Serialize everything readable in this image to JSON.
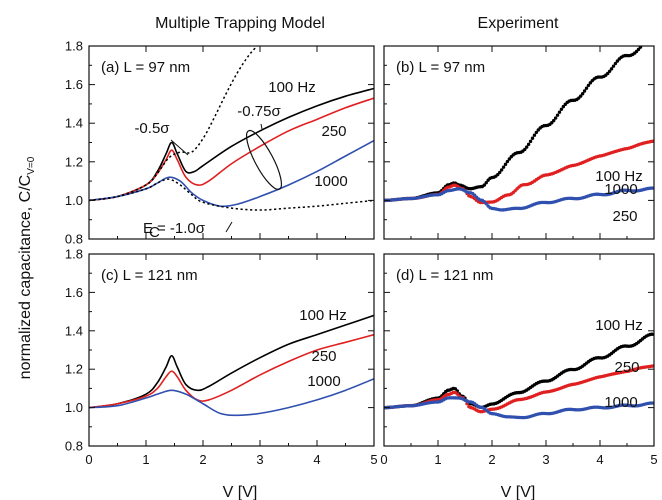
{
  "figure": {
    "column_titles": [
      "Multiple Trapping Model",
      "Experiment"
    ],
    "ylabel_main": "normalized capacitance, C/C",
    "ylabel_sub": "V=0",
    "xlabel": "V [V]"
  },
  "chart_data": [
    {
      "panel": "a",
      "type": "line",
      "label": "(a) L = 97 nm",
      "xlim": [
        0,
        5
      ],
      "ylim": [
        0.8,
        1.8
      ],
      "xticks": [
        0,
        1,
        2,
        3,
        4,
        5
      ],
      "yticks": [
        0.8,
        1.0,
        1.2,
        1.4,
        1.6,
        1.8
      ],
      "series": [
        {
          "name": "100 Hz",
          "color": "#000000",
          "style": "solid",
          "x": [
            0,
            0.5,
            1.0,
            1.2,
            1.35,
            1.45,
            1.55,
            1.7,
            1.85,
            2.0,
            2.5,
            3.0,
            3.5,
            4.0,
            4.5,
            5.0
          ],
          "y": [
            1.0,
            1.02,
            1.08,
            1.15,
            1.24,
            1.3,
            1.24,
            1.15,
            1.15,
            1.18,
            1.28,
            1.36,
            1.43,
            1.49,
            1.54,
            1.58
          ]
        },
        {
          "name": "250",
          "color": "#e02020",
          "style": "solid",
          "x": [
            0,
            0.5,
            1.0,
            1.2,
            1.35,
            1.45,
            1.55,
            1.7,
            1.9,
            2.1,
            2.5,
            3.0,
            3.5,
            4.0,
            4.5,
            5.0
          ],
          "y": [
            1.0,
            1.02,
            1.08,
            1.14,
            1.21,
            1.26,
            1.21,
            1.12,
            1.08,
            1.1,
            1.19,
            1.28,
            1.36,
            1.42,
            1.48,
            1.53
          ]
        },
        {
          "name": "1000",
          "color": "#3050b0",
          "style": "solid",
          "x": [
            0,
            0.5,
            1.0,
            1.2,
            1.4,
            1.6,
            1.8,
            2.0,
            2.3,
            2.6,
            3.0,
            3.5,
            4.0,
            4.5,
            5.0
          ],
          "y": [
            1.0,
            1.02,
            1.06,
            1.09,
            1.12,
            1.1,
            1.04,
            1.0,
            0.97,
            0.98,
            1.02,
            1.08,
            1.15,
            1.23,
            1.31
          ]
        },
        {
          "name": "-0.5σ",
          "color": "#000000",
          "style": "dotted",
          "x": [
            0,
            0.5,
            1.0,
            1.2,
            1.4,
            1.6,
            1.8,
            2.0,
            2.2,
            2.4,
            2.6,
            2.8,
            2.95
          ],
          "y": [
            1.0,
            1.02,
            1.08,
            1.14,
            1.22,
            1.25,
            1.25,
            1.32,
            1.43,
            1.55,
            1.66,
            1.75,
            1.8
          ]
        },
        {
          "name": "E_C = -1.0σ",
          "color": "#000000",
          "style": "dotted",
          "x": [
            0,
            0.5,
            1.0,
            1.2,
            1.4,
            1.6,
            1.8,
            2.0,
            2.5,
            3.0,
            3.5,
            4.0,
            4.5,
            5.0
          ],
          "y": [
            1.0,
            1.02,
            1.06,
            1.09,
            1.11,
            1.08,
            1.03,
            0.99,
            0.96,
            0.95,
            0.96,
            0.97,
            0.985,
            1.0
          ]
        }
      ],
      "annotations": [
        "100 Hz",
        "250",
        "1000",
        "-0.5σ",
        "-0.75σ",
        "E",
        "C",
        " = -1.0σ"
      ]
    },
    {
      "panel": "b",
      "type": "line",
      "label": "(b) L = 97 nm",
      "xlim": [
        0,
        5
      ],
      "ylim": [
        0.8,
        1.8
      ],
      "xticks": [
        0,
        1,
        2,
        3,
        4,
        5
      ],
      "yticks": [
        0.8,
        1.0,
        1.2,
        1.4,
        1.6,
        1.8
      ],
      "series": [
        {
          "name": "100 Hz",
          "color": "#000000",
          "style": "markers",
          "x": [
            0,
            0.5,
            1.0,
            1.2,
            1.3,
            1.4,
            1.6,
            1.8,
            2.0,
            2.5,
            3.0,
            3.5,
            4.0,
            4.5,
            5.0
          ],
          "y": [
            1.0,
            1.01,
            1.04,
            1.08,
            1.09,
            1.08,
            1.06,
            1.07,
            1.12,
            1.25,
            1.39,
            1.52,
            1.64,
            1.75,
            1.84
          ]
        },
        {
          "name": "250",
          "color": "#e02020",
          "style": "markers",
          "x": [
            0,
            0.5,
            1.0,
            1.2,
            1.3,
            1.45,
            1.6,
            1.8,
            2.0,
            2.3,
            2.6,
            3.0,
            3.5,
            4.0,
            4.5,
            5.0
          ],
          "y": [
            1.0,
            1.01,
            1.03,
            1.07,
            1.08,
            1.06,
            1.02,
            0.99,
            0.99,
            1.03,
            1.08,
            1.13,
            1.18,
            1.23,
            1.27,
            1.31
          ]
        },
        {
          "name": "1000",
          "color": "#3050b0",
          "style": "markers",
          "x": [
            0,
            0.5,
            1.0,
            1.2,
            1.4,
            1.6,
            1.8,
            2.0,
            2.2,
            2.5,
            3.0,
            3.5,
            4.0,
            4.5,
            5.0
          ],
          "y": [
            1.0,
            1.01,
            1.03,
            1.05,
            1.06,
            1.04,
            1.0,
            0.96,
            0.95,
            0.96,
            0.99,
            1.01,
            1.03,
            1.05,
            1.06
          ]
        }
      ],
      "annotations": [
        "100 Hz",
        "250",
        "1000"
      ]
    },
    {
      "panel": "c",
      "type": "line",
      "label": "(c) L = 121 nm",
      "xlim": [
        0,
        5
      ],
      "ylim": [
        0.8,
        1.8
      ],
      "xticks": [
        0,
        1,
        2,
        3,
        4,
        5
      ],
      "yticks": [
        0.8,
        1.0,
        1.2,
        1.4,
        1.6,
        1.8
      ],
      "series": [
        {
          "name": "100 Hz",
          "color": "#000000",
          "style": "solid",
          "x": [
            0,
            0.5,
            1.0,
            1.2,
            1.35,
            1.45,
            1.55,
            1.7,
            1.9,
            2.1,
            2.5,
            3.0,
            3.5,
            4.0,
            4.5,
            5.0
          ],
          "y": [
            1.0,
            1.02,
            1.07,
            1.13,
            1.21,
            1.27,
            1.21,
            1.12,
            1.09,
            1.11,
            1.18,
            1.26,
            1.33,
            1.38,
            1.43,
            1.48
          ]
        },
        {
          "name": "250",
          "color": "#e02020",
          "style": "solid",
          "x": [
            0,
            0.5,
            1.0,
            1.2,
            1.35,
            1.45,
            1.55,
            1.7,
            1.9,
            2.1,
            2.5,
            3.0,
            3.5,
            4.0,
            4.5,
            5.0
          ],
          "y": [
            1.0,
            1.02,
            1.06,
            1.1,
            1.16,
            1.19,
            1.16,
            1.09,
            1.04,
            1.04,
            1.09,
            1.17,
            1.24,
            1.3,
            1.34,
            1.38
          ]
        },
        {
          "name": "1000",
          "color": "#3050b0",
          "style": "solid",
          "x": [
            0,
            0.5,
            1.0,
            1.2,
            1.45,
            1.7,
            2.0,
            2.3,
            2.6,
            3.0,
            3.5,
            4.0,
            4.5,
            5.0
          ],
          "y": [
            1.0,
            1.01,
            1.05,
            1.07,
            1.09,
            1.07,
            1.02,
            0.97,
            0.96,
            0.97,
            1.0,
            1.04,
            1.09,
            1.15
          ]
        }
      ],
      "annotations": [
        "100 Hz",
        "250",
        "1000"
      ]
    },
    {
      "panel": "d",
      "type": "line",
      "label": "(d) L = 121 nm",
      "xlim": [
        0,
        5
      ],
      "ylim": [
        0.8,
        1.8
      ],
      "xticks": [
        0,
        1,
        2,
        3,
        4,
        5
      ],
      "yticks": [
        0.8,
        1.0,
        1.2,
        1.4,
        1.6,
        1.8
      ],
      "series": [
        {
          "name": "100 Hz",
          "color": "#000000",
          "style": "markers",
          "x": [
            0,
            0.5,
            1.0,
            1.2,
            1.3,
            1.45,
            1.6,
            1.8,
            2.0,
            2.5,
            3.0,
            3.5,
            4.0,
            4.5,
            5.0
          ],
          "y": [
            1.0,
            1.01,
            1.05,
            1.09,
            1.1,
            1.06,
            1.02,
            1.0,
            1.02,
            1.08,
            1.14,
            1.2,
            1.26,
            1.32,
            1.38
          ]
        },
        {
          "name": "250",
          "color": "#e02020",
          "style": "markers",
          "x": [
            0,
            0.5,
            1.0,
            1.2,
            1.3,
            1.45,
            1.6,
            1.8,
            2.0,
            2.5,
            3.0,
            3.5,
            4.0,
            4.5,
            5.0
          ],
          "y": [
            1.0,
            1.01,
            1.04,
            1.07,
            1.08,
            1.05,
            1.0,
            0.98,
            0.99,
            1.04,
            1.08,
            1.12,
            1.16,
            1.19,
            1.22
          ]
        },
        {
          "name": "1000",
          "color": "#3050b0",
          "style": "markers",
          "x": [
            0,
            0.5,
            1.0,
            1.2,
            1.4,
            1.6,
            1.8,
            2.0,
            2.3,
            2.6,
            3.0,
            3.5,
            4.0,
            4.5,
            5.0
          ],
          "y": [
            1.0,
            1.01,
            1.03,
            1.05,
            1.05,
            1.03,
            1.0,
            0.97,
            0.95,
            0.95,
            0.97,
            0.99,
            1.0,
            1.01,
            1.02
          ]
        }
      ],
      "annotations": [
        "100 Hz",
        "250",
        "1000"
      ]
    }
  ]
}
